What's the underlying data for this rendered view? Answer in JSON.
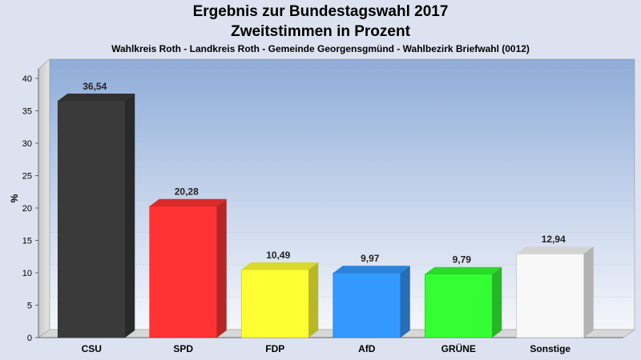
{
  "chart_data": {
    "type": "bar",
    "title": "Ergebnis zur Bundestagswahl 2017",
    "subtitle": "Zweitstimmen in Prozent",
    "caption": "Wahlkreis Roth - Landkreis Roth - Gemeinde Georgensgmünd - Wahlbezirk Briefwahl (0012)",
    "ylabel": "%",
    "xlabel": "",
    "ylim": [
      0,
      40
    ],
    "yticks": [
      0,
      5,
      10,
      15,
      20,
      25,
      30,
      35,
      40
    ],
    "grid": true,
    "categories": [
      "CSU",
      "SPD",
      "FDP",
      "AfD",
      "GRÜNE",
      "Sonstige"
    ],
    "values": [
      36.54,
      20.28,
      10.49,
      9.97,
      9.79,
      12.94
    ],
    "value_labels": [
      "36,54",
      "20,28",
      "10,49",
      "9,97",
      "9,79",
      "12,94"
    ],
    "colors": [
      "#3a3a3a",
      "#ff3333",
      "#ffff33",
      "#3399ff",
      "#33ff33",
      "#f8f8f8"
    ]
  }
}
